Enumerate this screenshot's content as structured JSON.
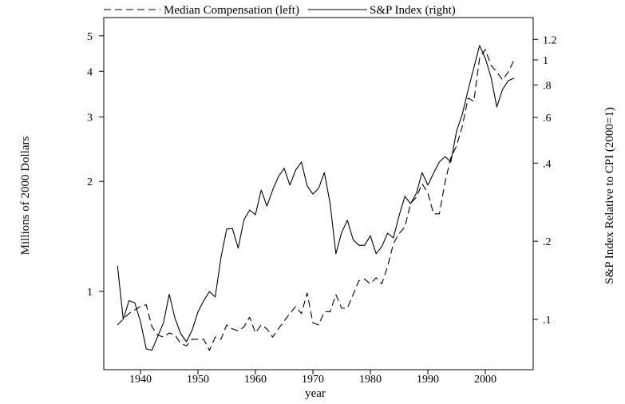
{
  "chart_data": {
    "type": "line",
    "xlabel": "year",
    "ylabel_left": "Millions of 2000 Dollars",
    "ylabel_right": "S&P Index Relative to CPI (2000=1)",
    "x_scale": "linear",
    "y_left_scale": "log",
    "y_right_scale": "log",
    "xlim": [
      1934,
      2010
    ],
    "ylim_left": [
      0.66,
      5.6
    ],
    "ylim_right": [
      0.073,
      1.37
    ],
    "x_ticks": [
      "1940",
      "1950",
      "1960",
      "1970",
      "1980",
      "1990",
      "2000"
    ],
    "y_left_ticks": [
      "1",
      "2",
      "3",
      "4",
      "5"
    ],
    "y_right_ticks": [
      ".1",
      ".2",
      ".4",
      ".6",
      ".8",
      "1",
      "1.2"
    ],
    "legend_placement": "top",
    "grid": false,
    "x": [
      1936,
      1937,
      1938,
      1939,
      1940,
      1941,
      1942,
      1943,
      1944,
      1945,
      1946,
      1947,
      1948,
      1949,
      1950,
      1951,
      1952,
      1953,
      1954,
      1955,
      1956,
      1957,
      1958,
      1959,
      1960,
      1961,
      1962,
      1963,
      1964,
      1965,
      1966,
      1967,
      1968,
      1969,
      1970,
      1971,
      1972,
      1973,
      1974,
      1975,
      1976,
      1977,
      1978,
      1979,
      1980,
      1981,
      1982,
      1983,
      1984,
      1985,
      1986,
      1987,
      1988,
      1989,
      1990,
      1991,
      1992,
      1993,
      1994,
      1995,
      1996,
      1997,
      1998,
      1999,
      2000,
      2001,
      2002,
      2003,
      2004,
      2005
    ],
    "series": [
      {
        "name": "Median Compensation (left)",
        "axis": "left",
        "style": "dashed",
        "values": [
          0.81,
          0.84,
          0.87,
          0.89,
          0.91,
          0.92,
          0.8,
          0.76,
          0.75,
          0.77,
          0.76,
          0.72,
          0.71,
          0.74,
          0.74,
          0.74,
          0.69,
          0.75,
          0.74,
          0.81,
          0.79,
          0.78,
          0.8,
          0.85,
          0.77,
          0.81,
          0.79,
          0.75,
          0.79,
          0.83,
          0.87,
          0.91,
          0.87,
          0.99,
          0.82,
          0.81,
          0.88,
          0.88,
          0.98,
          0.9,
          0.9,
          0.98,
          1.07,
          1.08,
          1.05,
          1.09,
          1.05,
          1.17,
          1.35,
          1.44,
          1.5,
          1.74,
          1.81,
          1.97,
          1.86,
          1.63,
          1.63,
          1.99,
          2.32,
          2.5,
          2.83,
          3.38,
          3.31,
          4.34,
          4.59,
          4.15,
          3.98,
          3.79,
          3.98,
          4.3
        ]
      },
      {
        "name": "S&P Index (right)",
        "axis": "right",
        "style": "solid",
        "values": [
          0.161,
          0.1,
          0.118,
          0.116,
          0.098,
          0.077,
          0.076,
          0.086,
          0.097,
          0.125,
          0.101,
          0.088,
          0.082,
          0.091,
          0.107,
          0.118,
          0.128,
          0.122,
          0.173,
          0.223,
          0.224,
          0.188,
          0.242,
          0.264,
          0.253,
          0.315,
          0.273,
          0.315,
          0.355,
          0.382,
          0.329,
          0.376,
          0.404,
          0.327,
          0.304,
          0.32,
          0.368,
          0.279,
          0.179,
          0.216,
          0.241,
          0.203,
          0.193,
          0.193,
          0.21,
          0.179,
          0.191,
          0.215,
          0.206,
          0.251,
          0.298,
          0.279,
          0.306,
          0.368,
          0.329,
          0.366,
          0.404,
          0.424,
          0.404,
          0.532,
          0.618,
          0.764,
          0.932,
          1.136,
          1.014,
          0.856,
          0.659,
          0.769,
          0.832,
          0.85
        ]
      }
    ],
    "colors": {
      "line": "#000000",
      "background": "#ffffff"
    }
  }
}
